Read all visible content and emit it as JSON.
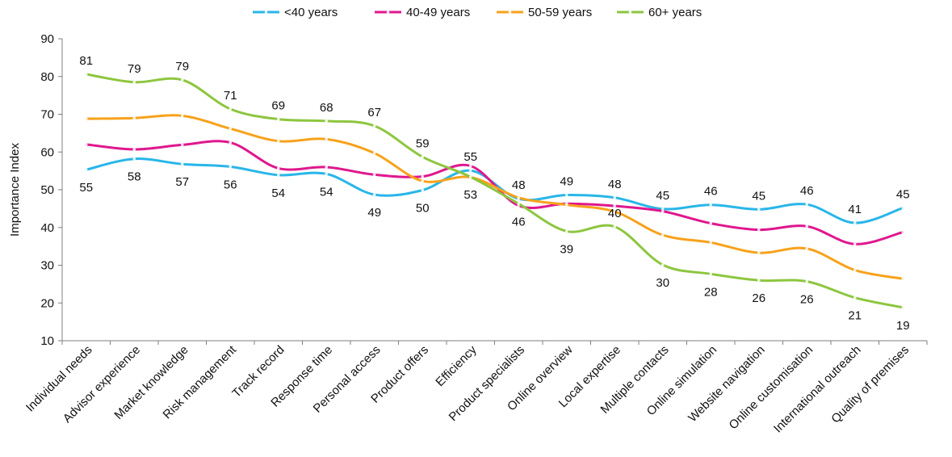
{
  "chart_data": {
    "type": "line",
    "title": "",
    "xlabel": "",
    "ylabel": "Importance Index",
    "ylim": [
      10,
      90
    ],
    "yticks": [
      10,
      20,
      30,
      40,
      50,
      60,
      70,
      80,
      90
    ],
    "grid": false,
    "legend_position": "top",
    "categories": [
      "Individual needs",
      "Advisor experience",
      "Market knowledge",
      "Risk management",
      "Track record",
      "Response time",
      "Personal access",
      "Product offers",
      "Efficiency",
      "Product specialists",
      "Online overview",
      "Local expertise",
      "Multiple contacts",
      "Online simulation",
      "Website navigation",
      "Online customisation",
      "International outreach",
      "Quality of premises"
    ],
    "series": [
      {
        "name": "<40 years",
        "color": "#29b6e8",
        "values": [
          55.3,
          58.2,
          56.8,
          56.1,
          53.9,
          54.2,
          48.7,
          49.9,
          55.1,
          47.6,
          48.6,
          47.9,
          44.9,
          46.0,
          44.8,
          46.1,
          41.2,
          45.2
        ],
        "labels": [
          "55",
          "58",
          "57",
          "56",
          "54",
          "54",
          "49",
          "50",
          "55",
          "48",
          "49",
          "48",
          "45",
          "46",
          "45",
          "46",
          "41",
          "45"
        ],
        "label_pos": [
          "below",
          "below",
          "below",
          "below",
          "below",
          "below",
          "below",
          "below",
          "above",
          "above",
          "above",
          "above",
          "above",
          "above",
          "above",
          "above",
          "above",
          "above"
        ]
      },
      {
        "name": "40-49 years",
        "color": "#e0178e",
        "values": [
          62.0,
          60.7,
          61.9,
          62.5,
          55.7,
          56.0,
          54.0,
          53.5,
          56.3,
          45.8,
          46.3,
          45.7,
          44.3,
          41.1,
          39.4,
          40.3,
          35.6,
          38.8
        ]
      },
      {
        "name": "50-59 years",
        "color": "#f7a21b",
        "values": [
          68.8,
          69.0,
          69.6,
          66.2,
          62.9,
          63.4,
          59.7,
          52.3,
          53.3,
          47.9,
          46.0,
          44.2,
          38.0,
          36.0,
          33.3,
          34.4,
          28.7,
          26.4
        ]
      },
      {
        "name": "60+ years",
        "color": "#8dc63f",
        "values": [
          80.6,
          78.5,
          79.1,
          71.4,
          68.7,
          68.2,
          66.9,
          58.7,
          53.4,
          46.3,
          39.0,
          40.2,
          30.1,
          27.7,
          26.0,
          25.7,
          21.4,
          18.8
        ],
        "labels": [
          "81",
          "79",
          "79",
          "71",
          "69",
          "68",
          "67",
          "59",
          "53",
          "46",
          "39",
          "40",
          "30",
          "28",
          "26",
          "26",
          "21",
          "19"
        ],
        "label_pos": [
          "above",
          "above",
          "above",
          "above",
          "above",
          "above",
          "above",
          "above",
          "below",
          "below",
          "below",
          "above",
          "below",
          "below",
          "below",
          "below",
          "below",
          "below"
        ]
      }
    ]
  }
}
